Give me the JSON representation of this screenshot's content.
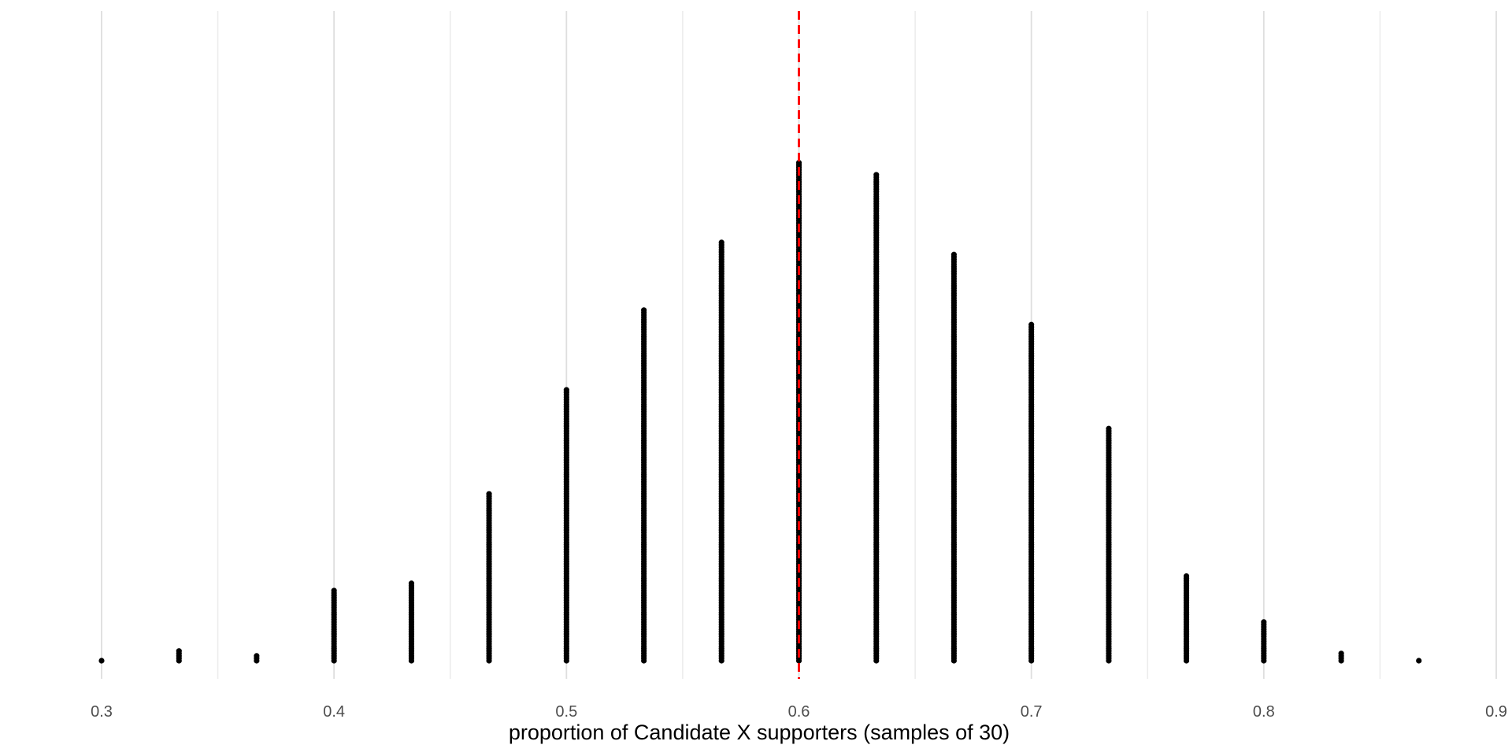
{
  "chart_data": {
    "type": "scatter",
    "subtype": "dotplot",
    "title": "",
    "xlabel": "proportion of Candidate X supporters (samples of 30)",
    "ylabel": "",
    "xlim": [
      0.3,
      0.9
    ],
    "x_ticks": [
      0.3,
      0.4,
      0.5,
      0.6,
      0.7,
      0.8,
      0.9
    ],
    "x_tick_labels": [
      "0.3",
      "0.4",
      "0.5",
      "0.6",
      "0.7",
      "0.8",
      "0.9"
    ],
    "grid": "vertical major and minor",
    "reference_line": {
      "x": 0.6,
      "style": "dashed",
      "color": "#ff0000"
    },
    "dot_color": "#000000",
    "x": [
      0.3,
      0.3333,
      0.3667,
      0.4,
      0.4333,
      0.4667,
      0.5,
      0.5333,
      0.5667,
      0.6,
      0.6333,
      0.6667,
      0.7,
      0.7333,
      0.7667,
      0.8,
      0.8333,
      0.8667
    ],
    "counts": [
      1,
      5,
      3,
      30,
      33,
      70,
      113,
      146,
      174,
      207,
      202,
      169,
      140,
      97,
      36,
      17,
      4,
      1
    ]
  }
}
